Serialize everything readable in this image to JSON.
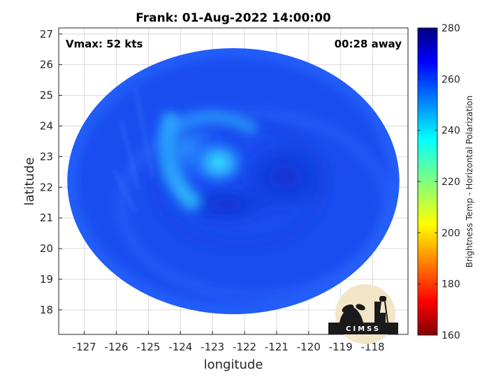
{
  "chart_data": {
    "type": "heatmap",
    "title": "Frank: 01-Aug-2022 14:00:00",
    "annotations": {
      "vmax": "Vmax: 52 kts",
      "time_away": "00:28 away"
    },
    "xlabel": "longitude",
    "ylabel": "latitude",
    "xlim": [
      -127.8,
      -116.9
    ],
    "ylim": [
      17.2,
      27.2
    ],
    "xticks": [
      -127,
      -126,
      -125,
      -124,
      -123,
      -122,
      -121,
      -120,
      -119,
      -118
    ],
    "xtick_labels": [
      "-127",
      "-126",
      "-125",
      "-124",
      "-123",
      "-122",
      "-121",
      "-120",
      "-119",
      "-118"
    ],
    "yticks": [
      18,
      19,
      20,
      21,
      22,
      23,
      24,
      25,
      26,
      27
    ],
    "ytick_labels": [
      "18",
      "19",
      "20",
      "21",
      "22",
      "23",
      "24",
      "25",
      "26",
      "27"
    ],
    "grid": true,
    "field": {
      "center": [
        -122.8,
        22.8
      ],
      "footprint_center": [
        -122.35,
        22.2
      ],
      "footprint_radii": [
        5.4,
        5.0
      ],
      "value_range": [
        240,
        275
      ]
    },
    "colorbar": {
      "label": "Brightness Temp - Horizontal Polarization",
      "range": [
        160,
        280
      ],
      "ticks": [
        160,
        180,
        200,
        220,
        240,
        260,
        280
      ],
      "tick_labels": [
        "160",
        "180",
        "200",
        "220",
        "240",
        "260",
        "280"
      ],
      "colormap": "jet"
    }
  },
  "logo": {
    "text": "CIMSS"
  },
  "colors": {
    "background": "#ffffff",
    "axis": "#262626",
    "grid": "#d9d9d9"
  }
}
